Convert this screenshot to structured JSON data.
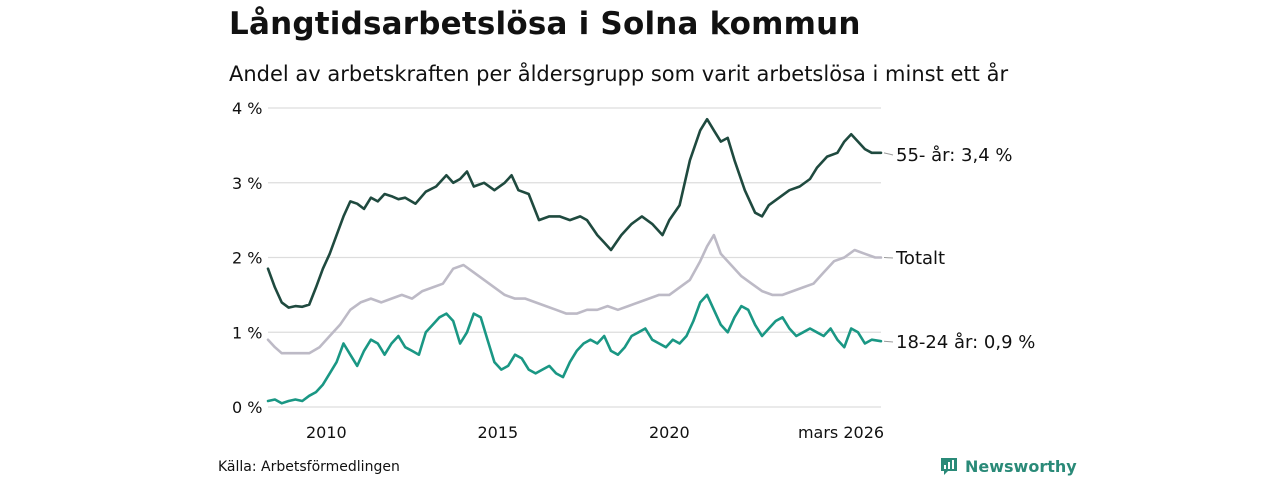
{
  "title": "Långtidsarbetslösa i Solna kommun",
  "subtitle": "Andel av arbetskraften per åldersgrupp som varit arbetslösa i minst ett år",
  "source": "Källa: Arbetsförmedlingen",
  "brand": "Newsworthy",
  "colors": {
    "s55": "#1f4a3f",
    "total": "#bdbac6",
    "s1824": "#1a9784",
    "grid": "#dddddd",
    "brand": "#2a8a78"
  },
  "chart_data": {
    "type": "line",
    "title": "Långtidsarbetslösa i Solna kommun",
    "xlabel": "",
    "ylabel": "",
    "xlim": [
      2008.3,
      2026.17
    ],
    "ylim": [
      0,
      4
    ],
    "grid": true,
    "y_ticks": [
      {
        "value": 0,
        "label": "0 %"
      },
      {
        "value": 1,
        "label": "1 %"
      },
      {
        "value": 2,
        "label": "2 %"
      },
      {
        "value": 3,
        "label": "3 %"
      },
      {
        "value": 4,
        "label": "4 %"
      }
    ],
    "x_ticks": [
      {
        "value": 2010,
        "label": "2010"
      },
      {
        "value": 2015,
        "label": "2015"
      },
      {
        "value": 2020,
        "label": "2020"
      },
      {
        "value": 2026.17,
        "label": "mars 2026"
      }
    ],
    "series": [
      {
        "name": "55- år",
        "key": "s55",
        "end_label": "55- år: 3,4 %",
        "x": [
          2008.3,
          2008.5,
          2008.7,
          2008.9,
          2009.1,
          2009.3,
          2009.5,
          2009.7,
          2009.9,
          2010.1,
          2010.3,
          2010.5,
          2010.7,
          2010.9,
          2011.1,
          2011.3,
          2011.5,
          2011.7,
          2011.9,
          2012.1,
          2012.3,
          2012.6,
          2012.9,
          2013.2,
          2013.5,
          2013.7,
          2013.9,
          2014.1,
          2014.3,
          2014.6,
          2014.9,
          2015.2,
          2015.4,
          2015.6,
          2015.9,
          2016.2,
          2016.5,
          2016.8,
          2017.1,
          2017.4,
          2017.6,
          2017.9,
          2018.1,
          2018.3,
          2018.6,
          2018.9,
          2019.2,
          2019.5,
          2019.8,
          2020.0,
          2020.3,
          2020.6,
          2020.9,
          2021.1,
          2021.3,
          2021.5,
          2021.7,
          2021.9,
          2022.2,
          2022.5,
          2022.7,
          2022.9,
          2023.2,
          2023.5,
          2023.8,
          2024.1,
          2024.3,
          2024.6,
          2024.9,
          2025.1,
          2025.3,
          2025.5,
          2025.7,
          2025.9,
          2026.17
        ],
        "values": [
          1.85,
          1.6,
          1.4,
          1.33,
          1.35,
          1.34,
          1.37,
          1.6,
          1.85,
          2.05,
          2.3,
          2.55,
          2.75,
          2.72,
          2.65,
          2.8,
          2.75,
          2.85,
          2.82,
          2.78,
          2.8,
          2.72,
          2.88,
          2.95,
          3.1,
          3.0,
          3.05,
          3.15,
          2.95,
          3.0,
          2.9,
          3.0,
          3.1,
          2.9,
          2.85,
          2.5,
          2.55,
          2.55,
          2.5,
          2.55,
          2.5,
          2.3,
          2.2,
          2.1,
          2.3,
          2.45,
          2.55,
          2.45,
          2.3,
          2.5,
          2.7,
          3.3,
          3.7,
          3.85,
          3.7,
          3.55,
          3.6,
          3.3,
          2.9,
          2.6,
          2.55,
          2.7,
          2.8,
          2.9,
          2.95,
          3.05,
          3.2,
          3.35,
          3.4,
          3.55,
          3.65,
          3.55,
          3.45,
          3.4,
          3.4
        ]
      },
      {
        "name": "Totalt",
        "key": "total",
        "end_label": "Totalt",
        "x": [
          2008.3,
          2008.5,
          2008.7,
          2008.9,
          2009.2,
          2009.5,
          2009.8,
          2010.1,
          2010.4,
          2010.7,
          2011.0,
          2011.3,
          2011.6,
          2011.9,
          2012.2,
          2012.5,
          2012.8,
          2013.1,
          2013.4,
          2013.7,
          2014.0,
          2014.3,
          2014.6,
          2014.9,
          2015.2,
          2015.5,
          2015.8,
          2016.1,
          2016.4,
          2016.7,
          2017.0,
          2017.3,
          2017.6,
          2017.9,
          2018.2,
          2018.5,
          2018.8,
          2019.1,
          2019.4,
          2019.7,
          2020.0,
          2020.3,
          2020.6,
          2020.9,
          2021.1,
          2021.3,
          2021.5,
          2021.8,
          2022.1,
          2022.4,
          2022.7,
          2023.0,
          2023.3,
          2023.6,
          2023.9,
          2024.2,
          2024.5,
          2024.8,
          2025.1,
          2025.4,
          2025.7,
          2026.0,
          2026.17
        ],
        "values": [
          0.9,
          0.8,
          0.72,
          0.72,
          0.72,
          0.72,
          0.8,
          0.95,
          1.1,
          1.3,
          1.4,
          1.45,
          1.4,
          1.45,
          1.5,
          1.45,
          1.55,
          1.6,
          1.65,
          1.85,
          1.9,
          1.8,
          1.7,
          1.6,
          1.5,
          1.45,
          1.45,
          1.4,
          1.35,
          1.3,
          1.25,
          1.25,
          1.3,
          1.3,
          1.35,
          1.3,
          1.35,
          1.4,
          1.45,
          1.5,
          1.5,
          1.6,
          1.7,
          1.95,
          2.15,
          2.3,
          2.05,
          1.9,
          1.75,
          1.65,
          1.55,
          1.5,
          1.5,
          1.55,
          1.6,
          1.65,
          1.8,
          1.95,
          2.0,
          2.1,
          2.05,
          2.0,
          2.0
        ]
      },
      {
        "name": "18-24 år",
        "key": "s1824",
        "end_label": "18-24 år: 0,9 %",
        "x": [
          2008.3,
          2008.5,
          2008.7,
          2008.9,
          2009.1,
          2009.3,
          2009.5,
          2009.7,
          2009.9,
          2010.1,
          2010.3,
          2010.5,
          2010.7,
          2010.9,
          2011.1,
          2011.3,
          2011.5,
          2011.7,
          2011.9,
          2012.1,
          2012.3,
          2012.5,
          2012.7,
          2012.9,
          2013.1,
          2013.3,
          2013.5,
          2013.7,
          2013.9,
          2014.1,
          2014.3,
          2014.5,
          2014.7,
          2014.9,
          2015.1,
          2015.3,
          2015.5,
          2015.7,
          2015.9,
          2016.1,
          2016.3,
          2016.5,
          2016.7,
          2016.9,
          2017.1,
          2017.3,
          2017.5,
          2017.7,
          2017.9,
          2018.1,
          2018.3,
          2018.5,
          2018.7,
          2018.9,
          2019.1,
          2019.3,
          2019.5,
          2019.7,
          2019.9,
          2020.1,
          2020.3,
          2020.5,
          2020.7,
          2020.9,
          2021.1,
          2021.3,
          2021.5,
          2021.7,
          2021.9,
          2022.1,
          2022.3,
          2022.5,
          2022.7,
          2022.9,
          2023.1,
          2023.3,
          2023.5,
          2023.7,
          2023.9,
          2024.1,
          2024.3,
          2024.5,
          2024.7,
          2024.9,
          2025.1,
          2025.3,
          2025.5,
          2025.7,
          2025.9,
          2026.17
        ],
        "values": [
          0.08,
          0.1,
          0.05,
          0.08,
          0.1,
          0.08,
          0.15,
          0.2,
          0.3,
          0.45,
          0.6,
          0.85,
          0.7,
          0.55,
          0.75,
          0.9,
          0.85,
          0.7,
          0.85,
          0.95,
          0.8,
          0.75,
          0.7,
          1.0,
          1.1,
          1.2,
          1.25,
          1.15,
          0.85,
          1.0,
          1.25,
          1.2,
          0.9,
          0.6,
          0.5,
          0.55,
          0.7,
          0.65,
          0.5,
          0.45,
          0.5,
          0.55,
          0.45,
          0.4,
          0.6,
          0.75,
          0.85,
          0.9,
          0.85,
          0.95,
          0.75,
          0.7,
          0.8,
          0.95,
          1.0,
          1.05,
          0.9,
          0.85,
          0.8,
          0.9,
          0.85,
          0.95,
          1.15,
          1.4,
          1.5,
          1.3,
          1.1,
          1.0,
          1.2,
          1.35,
          1.3,
          1.1,
          0.95,
          1.05,
          1.15,
          1.2,
          1.05,
          0.95,
          1.0,
          1.05,
          1.0,
          0.95,
          1.05,
          0.9,
          0.8,
          1.05,
          1.0,
          0.85,
          0.9,
          0.88
        ]
      }
    ]
  }
}
